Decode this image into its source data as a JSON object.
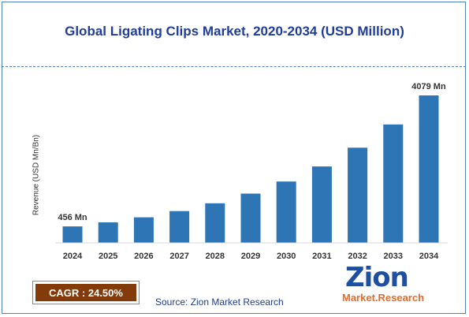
{
  "title": "Global Ligating Clips Market, 2020-2034 (USD Million)",
  "cagr_label": "CAGR : 24.50%",
  "source": "Source: Zion Market Research",
  "logo": {
    "word": "Zion",
    "subtext": "Market.Research"
  },
  "colors": {
    "bar": "#2e75b6",
    "title": "#1f3d99",
    "cagr_bg": "#833b0b",
    "logo_blue": "#1e4fa0",
    "logo_orange": "#e36c2d"
  },
  "chart_data": {
    "type": "bar",
    "title": "Global Ligating Clips Market, 2020-2034 (USD Million)",
    "xlabel": "",
    "ylabel": "Revenue (USD Mn/Bn)",
    "categories": [
      "2024",
      "2025",
      "2026",
      "2027",
      "2028",
      "2029",
      "2030",
      "2031",
      "2032",
      "2033",
      "2034"
    ],
    "values": [
      456,
      568,
      707,
      880,
      1096,
      1364,
      1698,
      2114,
      2632,
      3277,
      4079
    ],
    "data_labels": [
      {
        "index": 0,
        "text": "456 Mn"
      },
      {
        "index": 10,
        "text": "4079 Mn"
      }
    ],
    "ylim": [
      0,
      4079
    ],
    "grid": false,
    "legend": "none"
  }
}
